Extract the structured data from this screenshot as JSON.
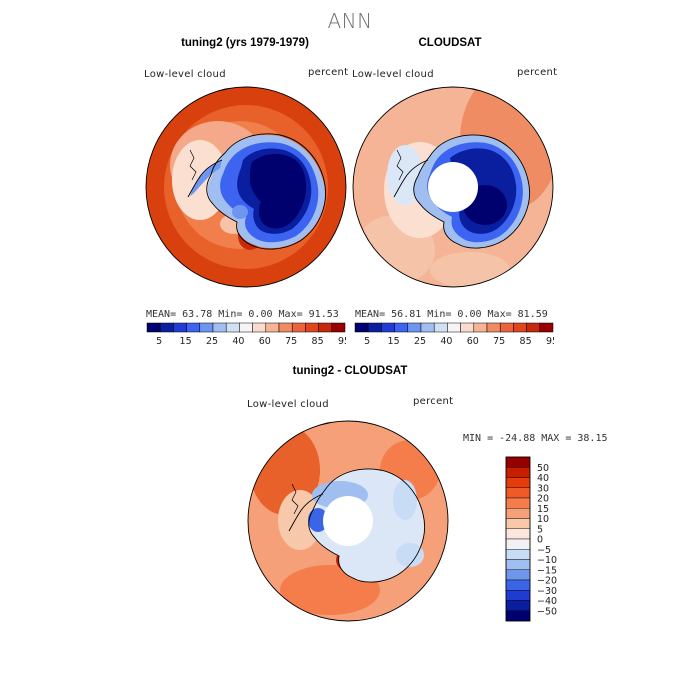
{
  "figure": {
    "title": "ANN"
  },
  "panels": [
    {
      "title": "tuning2 (yrs 1979-1979)",
      "variable": "Low-level cloud",
      "units": "percent",
      "stats": {
        "mean": "MEAN=",
        "mean_val": "63.78",
        "min": "Min=",
        "min_val": "0.00",
        "max": "Max=",
        "max_val": "91.53"
      }
    },
    {
      "title": "CLOUDSAT",
      "variable": "Low-level cloud",
      "units": "percent",
      "stats": {
        "mean": "MEAN=",
        "mean_val": "56.81",
        "min": "Min=",
        "min_val": "0.00",
        "max": "Max=",
        "max_val": "81.59"
      }
    },
    {
      "title": "tuning2 - CLOUDSAT",
      "variable": "Low-level cloud",
      "units": "percent",
      "stats_text": "MIN = -24.88  MAX =  38.15"
    }
  ],
  "colorbar_abs": {
    "labels": [
      "5",
      "15",
      "25",
      "40",
      "60",
      "75",
      "85",
      "95"
    ],
    "colors": [
      "#00006e",
      "#0a1ea0",
      "#1f3cd6",
      "#3c64f0",
      "#6e96f0",
      "#a0bef0",
      "#d2e0f5",
      "#f5f5f5",
      "#fadccd",
      "#f5b496",
      "#f08c64",
      "#eb643c",
      "#e0461e",
      "#c8280a",
      "#960000"
    ]
  },
  "colorbar_diff": {
    "labels": [
      "50",
      "40",
      "30",
      "20",
      "15",
      "10",
      "5",
      "0",
      "−5",
      "−10",
      "−15",
      "−20",
      "−30",
      "−40",
      "−50"
    ],
    "colors": [
      "#960000",
      "#c81e00",
      "#e63c0a",
      "#f05a28",
      "#f57d4b",
      "#f5a078",
      "#f8c8aa",
      "#fae6dc",
      "#f0f0f5",
      "#c8dcf5",
      "#a0bef0",
      "#6e96eb",
      "#3c64e6",
      "#1e3cd2",
      "#0a1ea0",
      "#00006e"
    ]
  }
}
